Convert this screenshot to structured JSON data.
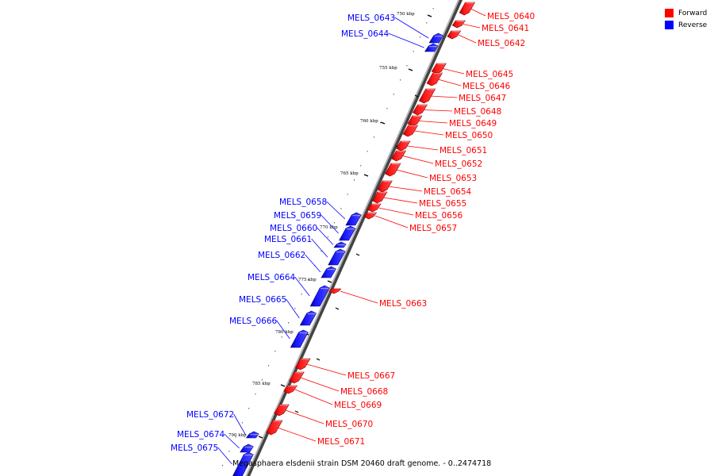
{
  "legend": {
    "forward": {
      "label": "Forward",
      "color": "#ff0000"
    },
    "reverse": {
      "label": "Reverse",
      "color": "#0000ff"
    }
  },
  "caption": "Megasphaera elsdenii strain DSM 20460 draft genome. - 0..2474718",
  "chart_data": {
    "type": "genome-map",
    "axis_unit": "kbp",
    "ticks": [
      "750 kbp",
      "755 kbp",
      "760 kbp",
      "765 kbp",
      "770 kbp",
      "775 kbp",
      "780 kbp",
      "785 kbp",
      "790 kbp"
    ],
    "genes": [
      {
        "name": "MELS_0640",
        "strand": "forward"
      },
      {
        "name": "MELS_0641",
        "strand": "forward"
      },
      {
        "name": "MELS_0642",
        "strand": "forward"
      },
      {
        "name": "MELS_0643",
        "strand": "reverse"
      },
      {
        "name": "MELS_0644",
        "strand": "reverse"
      },
      {
        "name": "MELS_0645",
        "strand": "forward"
      },
      {
        "name": "MELS_0646",
        "strand": "forward"
      },
      {
        "name": "MELS_0647",
        "strand": "forward"
      },
      {
        "name": "MELS_0648",
        "strand": "forward"
      },
      {
        "name": "MELS_0649",
        "strand": "forward"
      },
      {
        "name": "MELS_0650",
        "strand": "forward"
      },
      {
        "name": "MELS_0651",
        "strand": "forward"
      },
      {
        "name": "MELS_0652",
        "strand": "forward"
      },
      {
        "name": "MELS_0653",
        "strand": "forward"
      },
      {
        "name": "MELS_0654",
        "strand": "forward"
      },
      {
        "name": "MELS_0655",
        "strand": "forward"
      },
      {
        "name": "MELS_0656",
        "strand": "forward"
      },
      {
        "name": "MELS_0657",
        "strand": "forward"
      },
      {
        "name": "MELS_0658",
        "strand": "reverse"
      },
      {
        "name": "MELS_0659",
        "strand": "reverse"
      },
      {
        "name": "MELS_0660",
        "strand": "reverse"
      },
      {
        "name": "MELS_0661",
        "strand": "reverse"
      },
      {
        "name": "MELS_0662",
        "strand": "reverse"
      },
      {
        "name": "MELS_0663",
        "strand": "forward"
      },
      {
        "name": "MELS_0664",
        "strand": "reverse"
      },
      {
        "name": "MELS_0665",
        "strand": "reverse"
      },
      {
        "name": "MELS_0666",
        "strand": "reverse"
      },
      {
        "name": "MELS_0667",
        "strand": "forward"
      },
      {
        "name": "MELS_0668",
        "strand": "forward"
      },
      {
        "name": "MELS_0669",
        "strand": "forward"
      },
      {
        "name": "MELS_0670",
        "strand": "forward"
      },
      {
        "name": "MELS_0671",
        "strand": "forward"
      },
      {
        "name": "MELS_0672",
        "strand": "reverse"
      },
      {
        "name": "MELS_0674",
        "strand": "reverse"
      },
      {
        "name": "MELS_0675",
        "strand": "reverse"
      }
    ]
  }
}
